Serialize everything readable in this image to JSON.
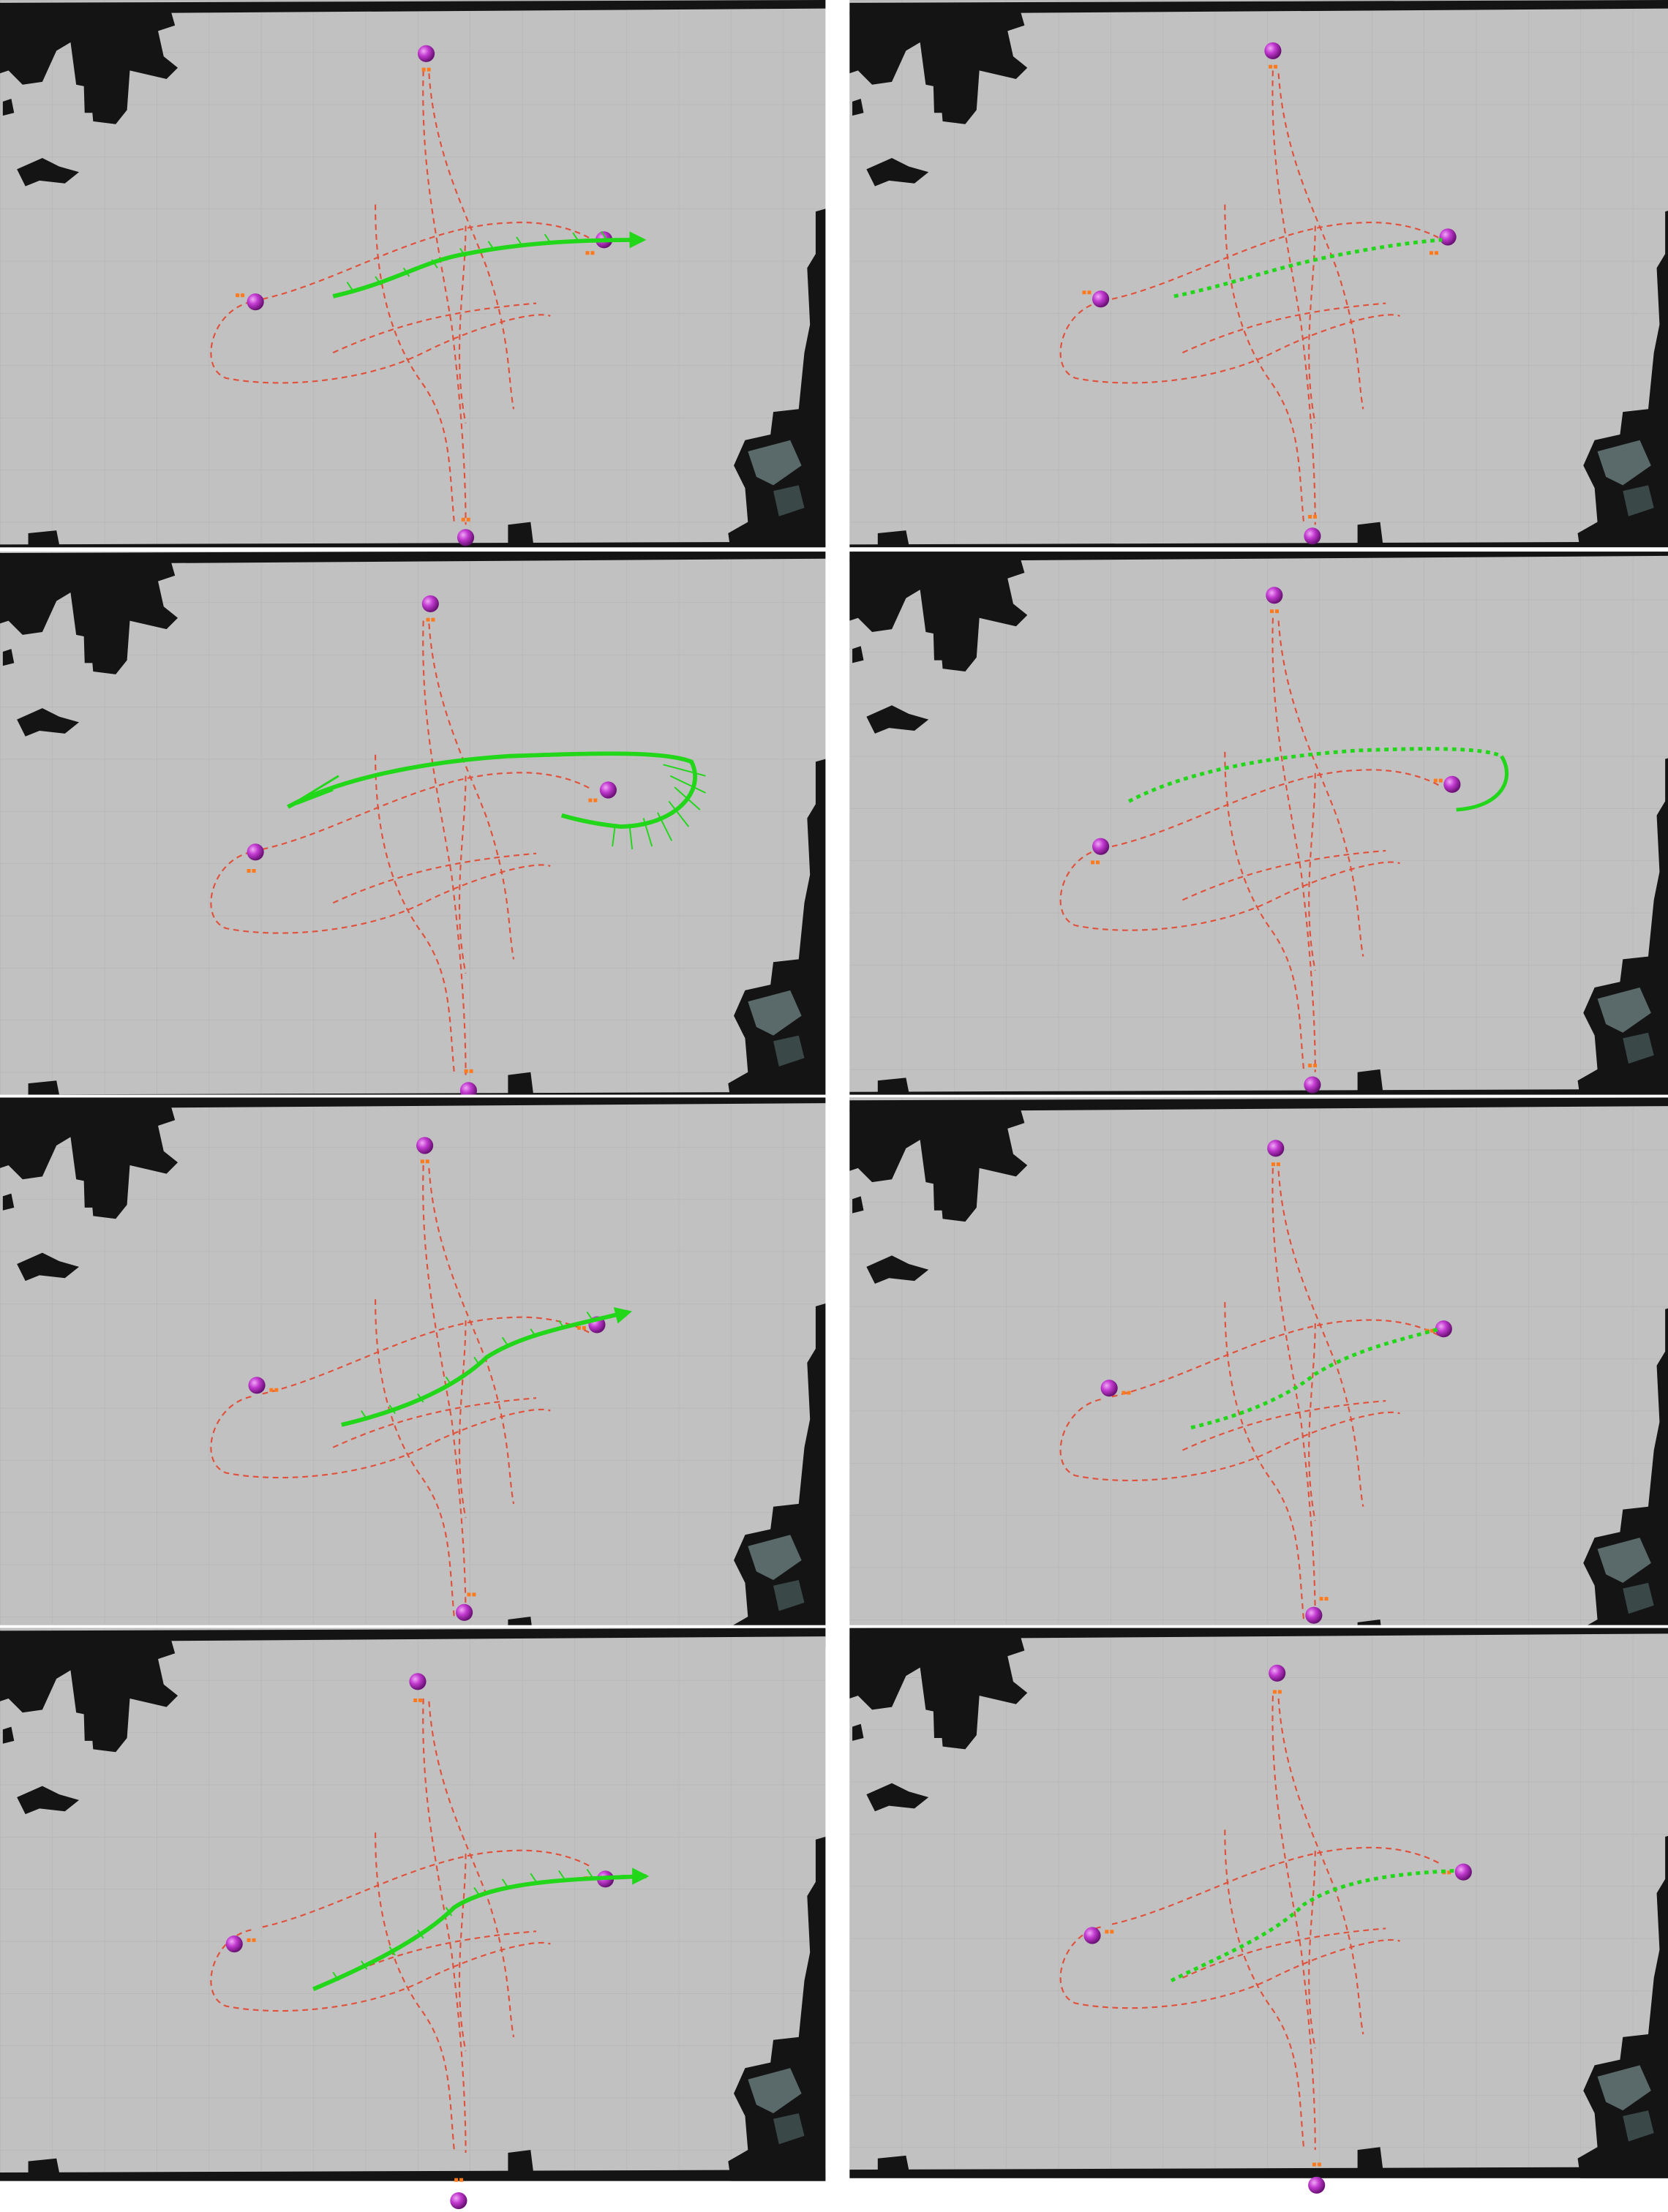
{
  "figure": {
    "columns": 2,
    "rows": 4,
    "left_column_style": "green arrow trajectory",
    "right_column_style": "green dotted trajectory",
    "colors": {
      "map_free": "#c1c1c1",
      "map_wall": "#141414",
      "map_edge": "#5a6a6a",
      "grid_line": "#b3b3b3",
      "path_red": "#e0503a",
      "trajectory_green": "#22d61a",
      "agent_sphere": "#c23ad0",
      "agent_marker": "#ff7a1c",
      "separator": "#ffffff"
    },
    "icons": {
      "agent": "magenta-sphere",
      "goal_marker": "orange-square-pair"
    }
  },
  "panels": [
    {
      "row": 1,
      "column": "left",
      "scenario": 1,
      "trajectory_style": "arrows"
    },
    {
      "row": 1,
      "column": "right",
      "scenario": 1,
      "trajectory_style": "dotted"
    },
    {
      "row": 2,
      "column": "left",
      "scenario": 2,
      "trajectory_style": "arrows"
    },
    {
      "row": 2,
      "column": "right",
      "scenario": 2,
      "trajectory_style": "dotted"
    },
    {
      "row": 3,
      "column": "left",
      "scenario": 3,
      "trajectory_style": "arrows"
    },
    {
      "row": 3,
      "column": "right",
      "scenario": 3,
      "trajectory_style": "dotted"
    },
    {
      "row": 4,
      "column": "left",
      "scenario": 4,
      "trajectory_style": "arrows"
    },
    {
      "row": 4,
      "column": "right",
      "scenario": 4,
      "trajectory_style": "dotted"
    }
  ]
}
